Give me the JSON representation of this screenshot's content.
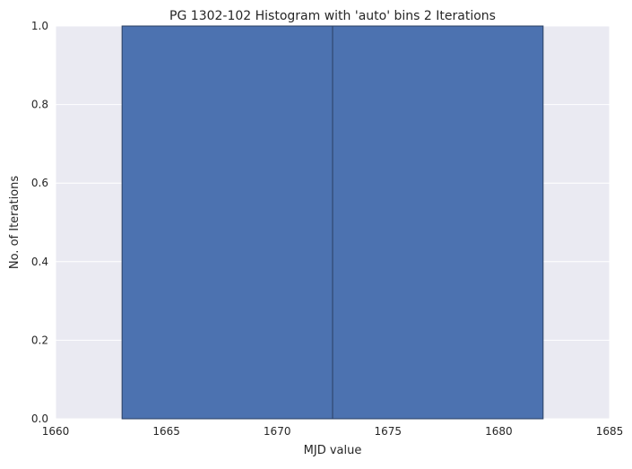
{
  "chart_data": {
    "type": "bar",
    "title": "PG 1302-102 Histogram with 'auto' bins 2 Iterations",
    "xlabel": "MJD value",
    "ylabel": "No. of Iterations",
    "xlim": [
      1660,
      1685
    ],
    "ylim": [
      0,
      1.0
    ],
    "x_ticks": [
      "1660",
      "1665",
      "1670",
      "1675",
      "1680",
      "1685"
    ],
    "y_ticks": [
      "0.0",
      "0.2",
      "0.4",
      "0.6",
      "0.8",
      "1.0"
    ],
    "bins": [
      {
        "x_start": 1663.0,
        "x_end": 1672.5,
        "value": 1
      },
      {
        "x_start": 1672.5,
        "x_end": 1682.0,
        "value": 1
      }
    ],
    "grid": true,
    "colors": {
      "background": "#eaeaf2",
      "bar_fill": "#4c72b0",
      "bar_edge": "#2a3f62",
      "grid": "#ffffff",
      "text": "#262626"
    }
  }
}
